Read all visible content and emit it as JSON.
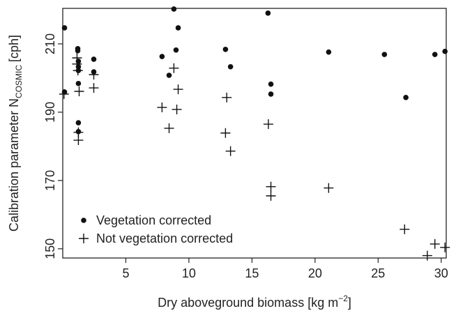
{
  "chart_data": {
    "type": "scatter",
    "xlabel": {
      "main": "Dry aboveground biomass [kg m",
      "sup": "−2",
      "end": "]"
    },
    "ylabel": {
      "main": "Calibration parameter N",
      "sub": "COSMIC",
      "unit": "[cph]"
    },
    "xlim": [
      0,
      30.4
    ],
    "ylim": [
      147.3,
      220.4
    ],
    "xticks": [
      5,
      10,
      15,
      20,
      25,
      30
    ],
    "yticks": [
      150,
      170,
      190,
      210
    ],
    "legend": "bottom-left",
    "series": [
      {
        "name": "Vegetation corrected",
        "color": "#111111",
        "marker": "dot",
        "x": [
          0.14,
          0.14,
          1.19,
          1.19,
          1.24,
          1.24,
          1.24,
          1.24,
          1.24,
          1.24,
          2.46,
          2.46,
          7.87,
          8.43,
          8.81,
          8.98,
          9.15,
          12.9,
          13.3,
          16.27,
          16.5,
          16.5,
          21.08,
          25.5,
          27.2,
          29.5,
          30.3
        ],
        "y": [
          214.7,
          195.9,
          208.6,
          208.0,
          204.9,
          203.3,
          202.2,
          198.4,
          186.9,
          184.3,
          205.5,
          201.8,
          206.3,
          200.8,
          220.2,
          208.2,
          214.7,
          208.4,
          203.3,
          219.0,
          198.2,
          195.3,
          207.6,
          206.9,
          194.3,
          206.9,
          207.8
        ]
      },
      {
        "name": "Not vegetation corrected",
        "color": "#111111",
        "marker": "plus",
        "x": [
          0.1,
          1.13,
          1.13,
          1.2,
          1.3,
          1.24,
          1.24,
          2.46,
          2.46,
          7.87,
          8.43,
          8.81,
          9.15,
          9.04,
          12.9,
          13.0,
          13.3,
          16.3,
          16.5,
          16.5,
          21.08,
          27.1,
          29.5,
          30.3,
          28.9
        ],
        "y": [
          195.3,
          205.9,
          204.1,
          202.2,
          196.1,
          184.1,
          181.8,
          201.0,
          197.1,
          191.4,
          185.3,
          202.9,
          196.7,
          190.8,
          183.9,
          194.3,
          178.6,
          186.5,
          168.2,
          165.5,
          167.8,
          155.7,
          151.4,
          150.4,
          148.0
        ]
      }
    ]
  }
}
